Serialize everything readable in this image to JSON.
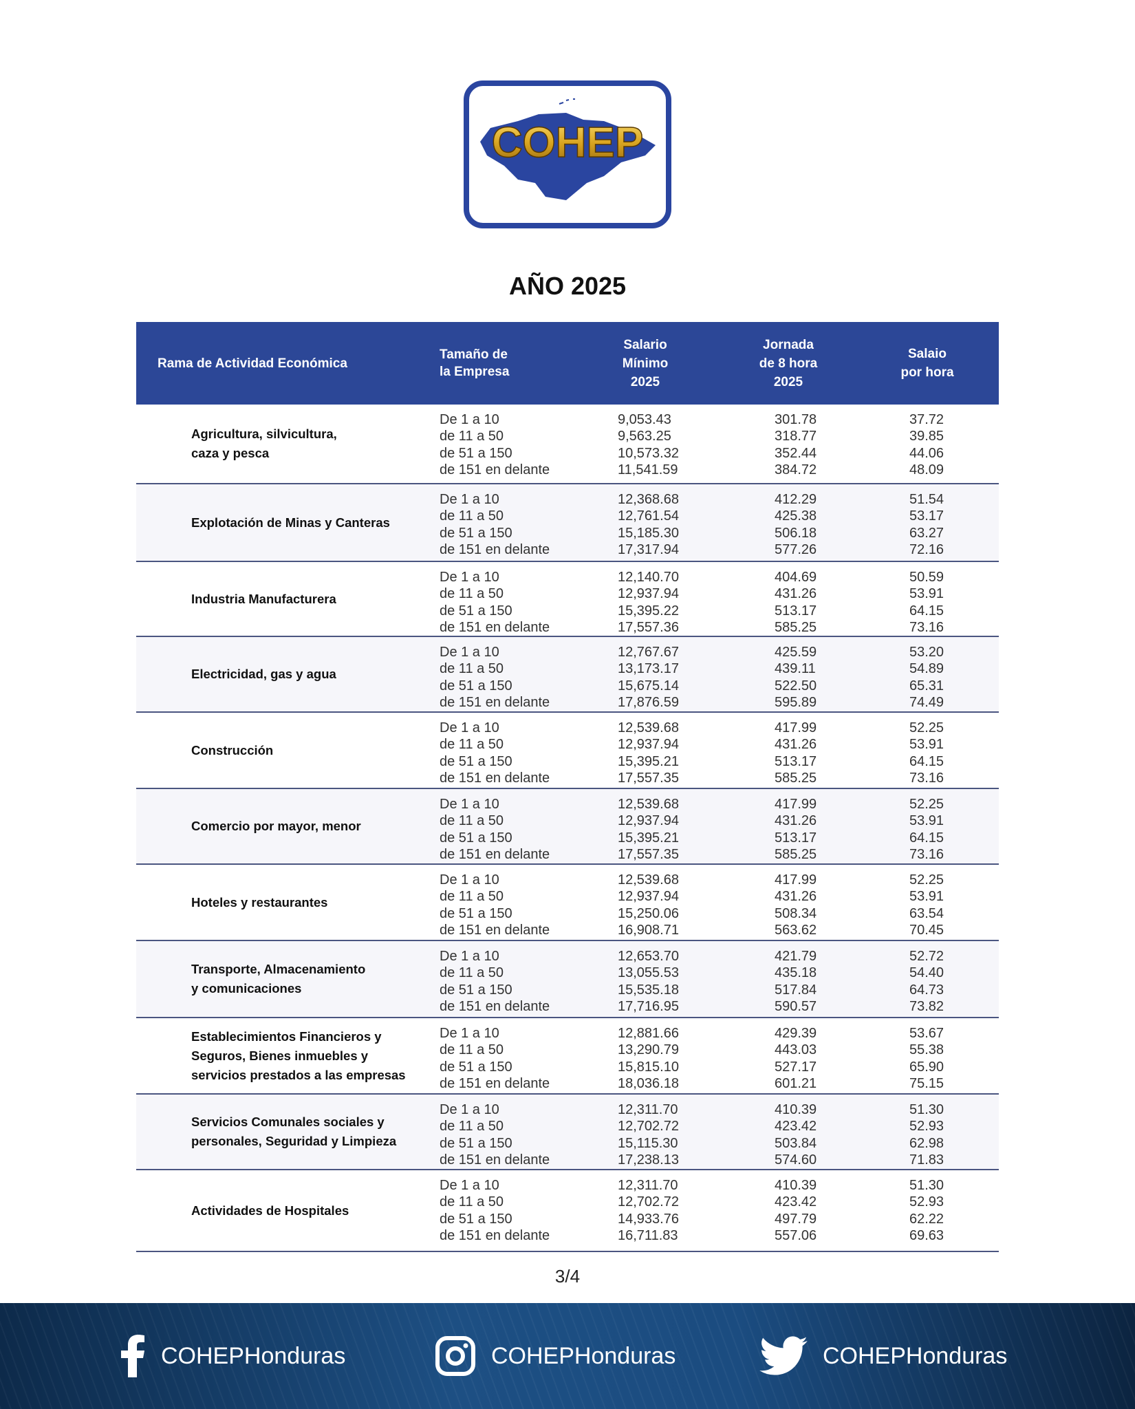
{
  "logo": {
    "text": "COHEP"
  },
  "title": "AÑO 2025",
  "table": {
    "headers": {
      "rama": "Rama de Actividad Económica",
      "tamano": [
        "Tamaño de",
        "la Empresa"
      ],
      "salario": [
        "Salario",
        "Mínimo",
        "2025"
      ],
      "jornada": [
        "Jornada",
        "de 8 hora",
        "2025"
      ],
      "hora": [
        "Salaio",
        "por hora"
      ]
    },
    "groups": [
      {
        "name": [
          "Agricultura, silvicultura,",
          "caza y pesca"
        ],
        "rows": [
          [
            "De 1 a 10",
            "9,053.43",
            "301.78",
            "37.72"
          ],
          [
            "de 11 a 50",
            "9,563.25",
            "318.77",
            "39.85"
          ],
          [
            "de 51 a 150",
            "10,573.32",
            "352.44",
            "44.06"
          ],
          [
            "de 151 en delante",
            "11,541.59",
            "384.72",
            "48.09"
          ]
        ]
      },
      {
        "name": [
          "Explotación de Minas y Canteras"
        ],
        "rows": [
          [
            "De 1 a 10",
            "12,368.68",
            "412.29",
            "51.54"
          ],
          [
            "de 11 a 50",
            "12,761.54",
            "425.38",
            "53.17"
          ],
          [
            "de 51 a 150",
            "15,185.30",
            "506.18",
            "63.27"
          ],
          [
            "de 151 en delante",
            "17,317.94",
            "577.26",
            "72.16"
          ]
        ]
      },
      {
        "name": [
          "Industria Manufacturera"
        ],
        "rows": [
          [
            "De 1 a 10",
            "12,140.70",
            "404.69",
            "50.59"
          ],
          [
            "de 11 a 50",
            "12,937.94",
            "431.26",
            "53.91"
          ],
          [
            "de 51 a 150",
            "15,395.22",
            "513.17",
            "64.15"
          ],
          [
            "de 151 en delante",
            "17,557.36",
            "585.25",
            "73.16"
          ]
        ]
      },
      {
        "name": [
          "Electricidad, gas y agua"
        ],
        "rows": [
          [
            "De 1 a 10",
            "12,767.67",
            "425.59",
            "53.20"
          ],
          [
            "de 11 a 50",
            "13,173.17",
            "439.11",
            "54.89"
          ],
          [
            "de 51 a 150",
            "15,675.14",
            "522.50",
            "65.31"
          ],
          [
            "de 151 en delante",
            "17,876.59",
            "595.89",
            "74.49"
          ]
        ]
      },
      {
        "name": [
          "Construcción"
        ],
        "rows": [
          [
            "De 1 a 10",
            "12,539.68",
            "417.99",
            "52.25"
          ],
          [
            "de 11 a 50",
            "12,937.94",
            "431.26",
            "53.91"
          ],
          [
            "de 51 a 150",
            "15,395.21",
            "513.17",
            "64.15"
          ],
          [
            "de 151 en delante",
            "17,557.35",
            "585.25",
            "73.16"
          ]
        ]
      },
      {
        "name": [
          "Comercio por mayor, menor"
        ],
        "rows": [
          [
            "De 1 a 10",
            "12,539.68",
            "417.99",
            "52.25"
          ],
          [
            "de 11 a 50",
            "12,937.94",
            "431.26",
            "53.91"
          ],
          [
            "de 51 a 150",
            "15,395.21",
            "513.17",
            "64.15"
          ],
          [
            "de 151 en delante",
            "17,557.35",
            "585.25",
            "73.16"
          ]
        ]
      },
      {
        "name": [
          "Hoteles y restaurantes"
        ],
        "rows": [
          [
            "De 1 a 10",
            "12,539.68",
            "417.99",
            "52.25"
          ],
          [
            "de 11 a 50",
            "12,937.94",
            "431.26",
            "53.91"
          ],
          [
            "de 51 a 150",
            "15,250.06",
            "508.34",
            "63.54"
          ],
          [
            "de 151 en delante",
            "16,908.71",
            "563.62",
            "70.45"
          ]
        ]
      },
      {
        "name": [
          "Transporte, Almacenamiento",
          "y comunicaciones"
        ],
        "rows": [
          [
            "De 1 a 10",
            "12,653.70",
            "421.79",
            "52.72"
          ],
          [
            "de 11 a 50",
            "13,055.53",
            "435.18",
            "54.40"
          ],
          [
            "de 51 a 150",
            "15,535.18",
            "517.84",
            "64.73"
          ],
          [
            "de 151 en delante",
            "17,716.95",
            "590.57",
            "73.82"
          ]
        ]
      },
      {
        "name": [
          "Establecimientos Financieros y",
          "Seguros, Bienes inmuebles y",
          "servicios prestados a las empresas"
        ],
        "rows": [
          [
            "De 1 a 10",
            "12,881.66",
            "429.39",
            "53.67"
          ],
          [
            "de 11 a 50",
            "13,290.79",
            "443.03",
            "55.38"
          ],
          [
            "de 51 a 150",
            "15,815.10",
            "527.17",
            "65.90"
          ],
          [
            "de 151 en delante",
            "18,036.18",
            "601.21",
            "75.15"
          ]
        ]
      },
      {
        "name": [
          "Servicios Comunales sociales y",
          "personales, Seguridad y Limpieza"
        ],
        "rows": [
          [
            "De 1 a 10",
            "12,311.70",
            "410.39",
            "51.30"
          ],
          [
            "de 11 a 50",
            "12,702.72",
            "423.42",
            "52.93"
          ],
          [
            "de 51 a 150",
            "15,115.30",
            "503.84",
            "62.98"
          ],
          [
            "de 151 en delante",
            "17,238.13",
            "574.60",
            "71.83"
          ]
        ]
      },
      {
        "name": [
          "Actividades de Hospitales"
        ],
        "rows": [
          [
            "De 1 a 10",
            "12,311.70",
            "410.39",
            "51.30"
          ],
          [
            "de 11 a 50",
            "12,702.72",
            "423.42",
            "52.93"
          ],
          [
            "de 51 a 150",
            "14,933.76",
            "497.79",
            "62.22"
          ],
          [
            "de 151 en delante",
            "16,711.83",
            "557.06",
            "69.63"
          ]
        ]
      }
    ]
  },
  "page_number": "3/4",
  "footer": {
    "social": [
      {
        "icon": "facebook-icon",
        "handle": "COHEPHonduras"
      },
      {
        "icon": "instagram-icon",
        "handle": "COHEPHonduras"
      },
      {
        "icon": "twitter-icon",
        "handle": "COHEPHonduras"
      }
    ]
  },
  "colors": {
    "header": "#2c4797",
    "logo_blue": "#2a45a0",
    "logo_gold": "#d9a521",
    "footer": "#1d4f83"
  }
}
